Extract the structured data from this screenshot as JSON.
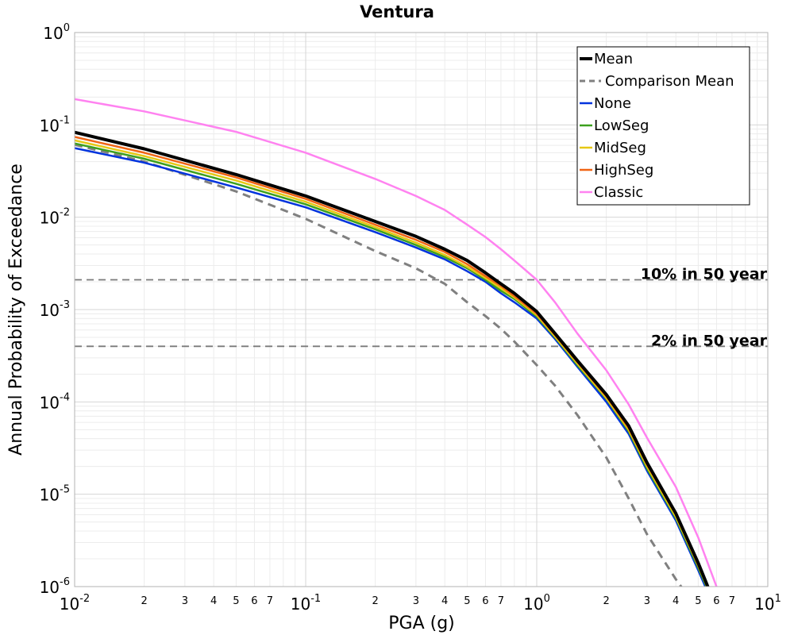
{
  "chart_data": {
    "type": "line",
    "title": "Ventura",
    "xlabel": "PGA (g)",
    "ylabel": "Annual Probability of Exceedance",
    "x_scale": "log",
    "y_scale": "log",
    "xlim": [
      0.01,
      10
    ],
    "ylim": [
      1e-06,
      1
    ],
    "grid": true,
    "legend_position": "top-right",
    "x_major_ticks": [
      {
        "base": "10",
        "exp": "-2",
        "value": 0.01
      },
      {
        "base": "10",
        "exp": "-1",
        "value": 0.1
      },
      {
        "base": "10",
        "exp": "0",
        "value": 1
      },
      {
        "base": "10",
        "exp": "1",
        "value": 10
      }
    ],
    "y_major_ticks": [
      {
        "base": "10",
        "exp": "0",
        "value": 1
      },
      {
        "base": "10",
        "exp": "-1",
        "value": 0.1
      },
      {
        "base": "10",
        "exp": "-2",
        "value": 0.01
      },
      {
        "base": "10",
        "exp": "-3",
        "value": 0.001
      },
      {
        "base": "10",
        "exp": "-4",
        "value": 0.0001
      },
      {
        "base": "10",
        "exp": "-5",
        "value": 1e-05
      },
      {
        "base": "10",
        "exp": "-6",
        "value": 1e-06
      }
    ],
    "x_minor_labels": [
      "2",
      "3",
      "4",
      "5",
      "6",
      "7"
    ],
    "reference_lines": [
      {
        "label": "10% in 50 year",
        "y": 0.0021
      },
      {
        "label": "2% in 50 year",
        "y": 0.0004
      }
    ],
    "series": [
      {
        "name": "Mean",
        "color": "#000000",
        "style": "solid",
        "width": 4,
        "x": [
          0.01,
          0.02,
          0.05,
          0.1,
          0.2,
          0.3,
          0.4,
          0.5,
          0.6,
          0.7,
          0.8,
          1.0,
          1.2,
          1.5,
          2.0,
          2.5,
          3.0,
          4.0,
          5.0,
          5.7
        ],
        "y": [
          0.083,
          0.055,
          0.029,
          0.017,
          0.009,
          0.0062,
          0.0045,
          0.0034,
          0.0025,
          0.0019,
          0.0015,
          0.00095,
          0.00055,
          0.00028,
          0.00012,
          5.5e-05,
          2.2e-05,
          6.2e-06,
          1.8e-06,
          8e-07
        ]
      },
      {
        "name": "Comparison Mean",
        "color": "#808080",
        "style": "dashed",
        "width": 3,
        "x": [
          0.01,
          0.02,
          0.05,
          0.1,
          0.2,
          0.3,
          0.4,
          0.5,
          0.6,
          0.7,
          0.8,
          1.0,
          1.2,
          1.5,
          2.0,
          2.5,
          3.0,
          4.0,
          4.5
        ],
        "y": [
          0.061,
          0.04,
          0.019,
          0.0096,
          0.0043,
          0.0028,
          0.0019,
          0.0012,
          0.00085,
          0.00062,
          0.00045,
          0.00025,
          0.00015,
          7.2e-05,
          2.5e-05,
          9e-06,
          3.7e-06,
          1.2e-06,
          8e-07
        ]
      },
      {
        "name": "None",
        "color": "#0033dd",
        "style": "solid",
        "width": 2.5,
        "x": [
          0.01,
          0.02,
          0.05,
          0.1,
          0.2,
          0.3,
          0.4,
          0.5,
          0.6,
          0.7,
          0.8,
          1.0,
          1.2,
          1.5,
          2.0,
          2.5,
          3.0,
          4.0,
          5.0,
          5.7
        ],
        "y": [
          0.056,
          0.039,
          0.021,
          0.0128,
          0.0069,
          0.0047,
          0.0035,
          0.0026,
          0.002,
          0.0015,
          0.0012,
          0.0008,
          0.00048,
          0.00024,
          0.0001,
          4.5e-05,
          1.8e-05,
          5.2e-06,
          1.5e-06,
          7e-07
        ]
      },
      {
        "name": "LowSeg",
        "color": "#3ca01e",
        "style": "solid",
        "width": 2.5,
        "x": [
          0.01,
          0.02,
          0.05,
          0.1,
          0.2,
          0.3,
          0.4,
          0.5,
          0.6,
          0.7,
          0.8,
          1.0,
          1.2,
          1.5,
          2.0,
          2.5,
          3.0,
          4.0,
          5.0,
          5.7
        ],
        "y": [
          0.063,
          0.043,
          0.023,
          0.0138,
          0.0074,
          0.005,
          0.0037,
          0.0028,
          0.0021,
          0.0016,
          0.0013,
          0.00084,
          0.0005,
          0.00025,
          0.000108,
          4.8e-05,
          1.9e-05,
          5.5e-06,
          1.6e-06,
          7.5e-07
        ]
      },
      {
        "name": "MidSeg",
        "color": "#e6c814",
        "style": "solid",
        "width": 2.5,
        "x": [
          0.01,
          0.02,
          0.05,
          0.1,
          0.2,
          0.3,
          0.4,
          0.5,
          0.6,
          0.7,
          0.8,
          1.0,
          1.2,
          1.5,
          2.0,
          2.5,
          3.0,
          4.0,
          5.0,
          5.7
        ],
        "y": [
          0.068,
          0.046,
          0.025,
          0.0147,
          0.0078,
          0.0053,
          0.0039,
          0.0029,
          0.0022,
          0.0017,
          0.00135,
          0.00087,
          0.00051,
          0.00026,
          0.00011,
          5e-05,
          2e-05,
          5.7e-06,
          1.7e-06,
          7.7e-07
        ]
      },
      {
        "name": "HighSeg",
        "color": "#f06414",
        "style": "solid",
        "width": 2.5,
        "x": [
          0.01,
          0.02,
          0.05,
          0.1,
          0.2,
          0.3,
          0.4,
          0.5,
          0.6,
          0.7,
          0.8,
          1.0,
          1.2,
          1.5,
          2.0,
          2.5,
          3.0,
          4.0,
          5.0,
          5.7
        ],
        "y": [
          0.074,
          0.05,
          0.027,
          0.0158,
          0.0083,
          0.0057,
          0.0042,
          0.0031,
          0.0023,
          0.0018,
          0.0014,
          0.0009,
          0.00053,
          0.00027,
          0.000115,
          5.2e-05,
          2.1e-05,
          6e-06,
          1.7e-06,
          7.8e-07
        ]
      },
      {
        "name": "Classic",
        "color": "#ff82f0",
        "style": "solid",
        "width": 2.5,
        "x": [
          0.01,
          0.02,
          0.05,
          0.1,
          0.2,
          0.3,
          0.4,
          0.5,
          0.6,
          0.7,
          0.8,
          1.0,
          1.2,
          1.5,
          2.0,
          2.5,
          3.0,
          4.0,
          5.0,
          6.0
        ],
        "y": [
          0.19,
          0.14,
          0.084,
          0.05,
          0.026,
          0.017,
          0.012,
          0.0083,
          0.0061,
          0.0045,
          0.0034,
          0.0021,
          0.0012,
          0.00055,
          0.00022,
          9.4e-05,
          4.1e-05,
          1.2e-05,
          3.4e-06,
          1e-06
        ]
      }
    ]
  }
}
